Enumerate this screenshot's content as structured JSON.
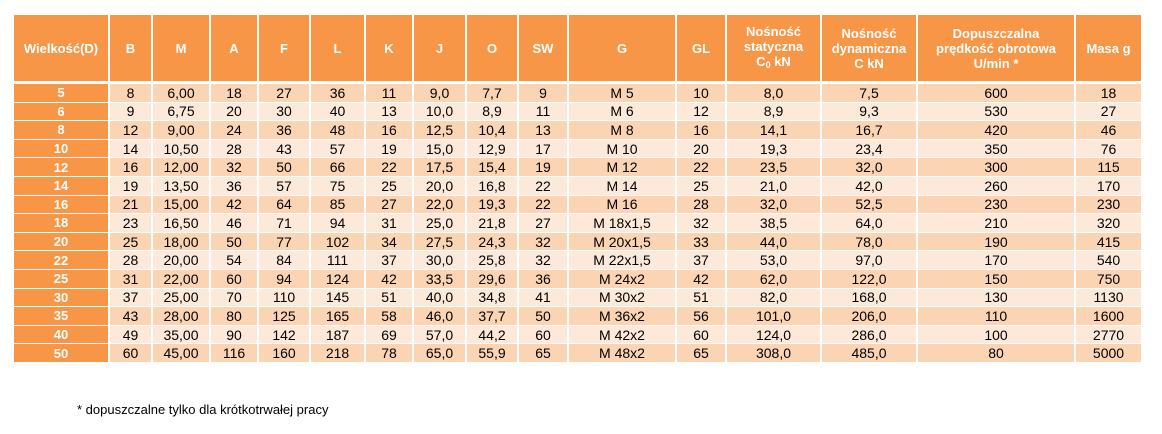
{
  "headers": {
    "size": "Wielkość(D)",
    "b": "B",
    "m": "M",
    "a": "A",
    "f": "F",
    "l": "L",
    "k": "K",
    "j": "J",
    "o": "O",
    "sw": "SW",
    "g": "G",
    "gl": "GL",
    "static_line1": "Nośność",
    "static_line2": "statyczna",
    "static_line3_pre": "C",
    "static_line3_sub": "0",
    "static_line3_post": " kN",
    "dynamic_line1": "Nośność",
    "dynamic_line2": "dynamiczna",
    "dynamic_line3": "C kN",
    "speed_line1": "Dopuszczalna",
    "speed_line2": "prędkość obrotowa",
    "speed_line3": "U/min  *",
    "mass": "Masa g"
  },
  "rows": [
    [
      "5",
      "8",
      "6,00",
      "18",
      "27",
      "36",
      "11",
      "9,0",
      "7,7",
      "9",
      "M 5",
      "10",
      "8,0",
      "7,5",
      "600",
      "18"
    ],
    [
      "6",
      "9",
      "6,75",
      "20",
      "30",
      "40",
      "13",
      "10,0",
      "8,9",
      "11",
      "M 6",
      "12",
      "8,9",
      "9,3",
      "530",
      "27"
    ],
    [
      "8",
      "12",
      "9,00",
      "24",
      "36",
      "48",
      "16",
      "12,5",
      "10,4",
      "13",
      "M 8",
      "16",
      "14,1",
      "16,7",
      "420",
      "46"
    ],
    [
      "10",
      "14",
      "10,50",
      "28",
      "43",
      "57",
      "19",
      "15,0",
      "12,9",
      "17",
      "M 10",
      "20",
      "19,3",
      "23,4",
      "350",
      "76"
    ],
    [
      "12",
      "16",
      "12,00",
      "32",
      "50",
      "66",
      "22",
      "17,5",
      "15,4",
      "19",
      "M 12",
      "22",
      "23,5",
      "32,0",
      "300",
      "115"
    ],
    [
      "14",
      "19",
      "13,50",
      "36",
      "57",
      "75",
      "25",
      "20,0",
      "16,8",
      "22",
      "M 14",
      "25",
      "21,0",
      "42,0",
      "260",
      "170"
    ],
    [
      "16",
      "21",
      "15,00",
      "42",
      "64",
      "85",
      "27",
      "22,0",
      "19,3",
      "22",
      "M 16",
      "28",
      "32,0",
      "52,5",
      "230",
      "230"
    ],
    [
      "18",
      "23",
      "16,50",
      "46",
      "71",
      "94",
      "31",
      "25,0",
      "21,8",
      "27",
      "M 18x1,5",
      "32",
      "38,5",
      "64,0",
      "210",
      "320"
    ],
    [
      "20",
      "25",
      "18,00",
      "50",
      "77",
      "102",
      "34",
      "27,5",
      "24,3",
      "32",
      "M 20x1,5",
      "33",
      "44,0",
      "78,0",
      "190",
      "415"
    ],
    [
      "22",
      "28",
      "20,00",
      "54",
      "84",
      "111",
      "37",
      "30,0",
      "25,8",
      "32",
      "M 22x1,5",
      "37",
      "53,0",
      "97,0",
      "170",
      "540"
    ],
    [
      "25",
      "31",
      "22,00",
      "60",
      "94",
      "124",
      "42",
      "33,5",
      "29,6",
      "36",
      "M 24x2",
      "42",
      "62,0",
      "122,0",
      "150",
      "750"
    ],
    [
      "30",
      "37",
      "25,00",
      "70",
      "110",
      "145",
      "51",
      "40,0",
      "34,8",
      "41",
      "M 30x2",
      "51",
      "82,0",
      "168,0",
      "130",
      "1130"
    ],
    [
      "35",
      "43",
      "28,00",
      "80",
      "125",
      "165",
      "58",
      "46,0",
      "37,7",
      "50",
      "M 36x2",
      "56",
      "101,0",
      "206,0",
      "110",
      "1600"
    ],
    [
      "40",
      "49",
      "35,00",
      "90",
      "142",
      "187",
      "69",
      "57,0",
      "44,2",
      "60",
      "M 42x2",
      "60",
      "124,0",
      "286,0",
      "100",
      "2770"
    ],
    [
      "50",
      "60",
      "45,00",
      "116",
      "160",
      "218",
      "78",
      "65,0",
      "55,9",
      "65",
      "M 48x2",
      "65",
      "308,0",
      "485,0",
      "80",
      "5000"
    ]
  ],
  "footnote": "* dopuszczalne tylko dla krótkotrwałej pracy",
  "colors": {
    "header_bg": "#F79646",
    "row_odd": "#FBD4B4",
    "row_even": "#FDE9D9",
    "header_text": "#FFFFFF"
  }
}
